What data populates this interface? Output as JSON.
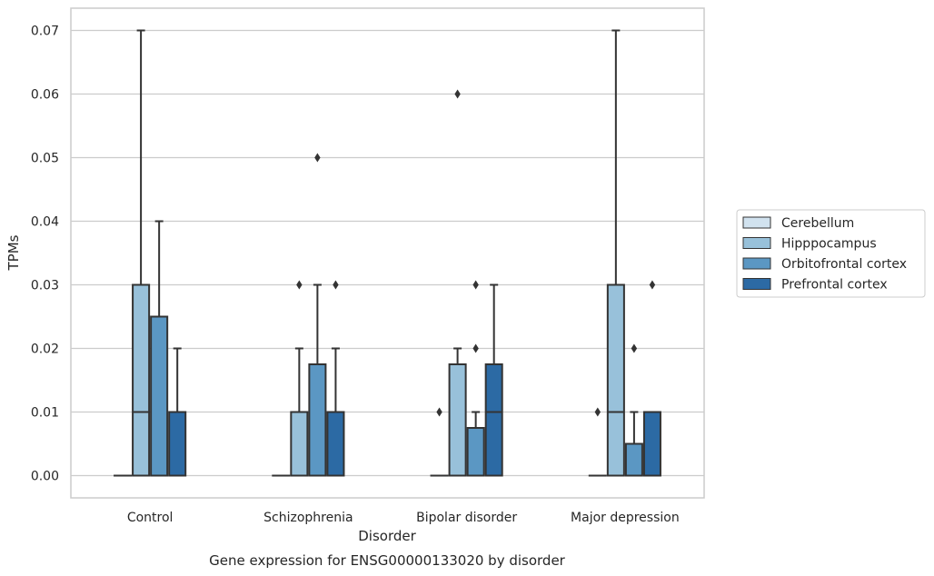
{
  "chart_data": {
    "type": "box",
    "title": "",
    "caption": "Gene expression for ENSG00000133020 by disorder",
    "xlabel": "Disorder",
    "ylabel": "TPMs",
    "ylim": [
      -0.0035,
      0.0735
    ],
    "yticks": [
      0.0,
      0.01,
      0.02,
      0.03,
      0.04,
      0.05,
      0.06,
      0.07
    ],
    "ytick_labels": [
      "0.00",
      "0.01",
      "0.02",
      "0.03",
      "0.04",
      "0.05",
      "0.06",
      "0.07"
    ],
    "grid": "horizontal",
    "legend_position": "right, outside plot",
    "categories": [
      "Control",
      "Schizophrenia",
      "Bipolar disorder",
      "Major depression"
    ],
    "series": [
      {
        "name": "Cerebellum",
        "color": "#d1e2ef",
        "boxes": [
          {
            "q1": 0.0,
            "median": 0.0,
            "q3": 0.0,
            "whisker_low": 0.0,
            "whisker_high": 0.0,
            "outliers": []
          },
          {
            "q1": 0.0,
            "median": 0.0,
            "q3": 0.0,
            "whisker_low": 0.0,
            "whisker_high": 0.0,
            "outliers": []
          },
          {
            "q1": 0.0,
            "median": 0.0,
            "q3": 0.0,
            "whisker_low": 0.0,
            "whisker_high": 0.0,
            "outliers": [
              0.01
            ]
          },
          {
            "q1": 0.0,
            "median": 0.0,
            "q3": 0.0,
            "whisker_low": 0.0,
            "whisker_high": 0.0,
            "outliers": [
              0.01
            ]
          }
        ]
      },
      {
        "name": "Hipppocampus",
        "color": "#98c1da",
        "boxes": [
          {
            "q1": 0.0,
            "median": 0.01,
            "q3": 0.03,
            "whisker_low": 0.0,
            "whisker_high": 0.07,
            "outliers": []
          },
          {
            "q1": 0.0,
            "median": 0.0,
            "q3": 0.01,
            "whisker_low": 0.0,
            "whisker_high": 0.02,
            "outliers": [
              0.03
            ]
          },
          {
            "q1": 0.0,
            "median": 0.0,
            "q3": 0.0175,
            "whisker_low": 0.0,
            "whisker_high": 0.02,
            "outliers": [
              0.06
            ]
          },
          {
            "q1": 0.0,
            "median": 0.01,
            "q3": 0.03,
            "whisker_low": 0.0,
            "whisker_high": 0.07,
            "outliers": []
          }
        ]
      },
      {
        "name": "Orbitofrontal cortex",
        "color": "#5b97c3",
        "boxes": [
          {
            "q1": 0.0,
            "median": 0.0,
            "q3": 0.025,
            "whisker_low": 0.0,
            "whisker_high": 0.04,
            "outliers": []
          },
          {
            "q1": 0.0,
            "median": 0.0,
            "q3": 0.0175,
            "whisker_low": 0.0,
            "whisker_high": 0.03,
            "outliers": [
              0.05
            ]
          },
          {
            "q1": 0.0,
            "median": 0.0,
            "q3": 0.0075,
            "whisker_low": 0.0,
            "whisker_high": 0.01,
            "outliers": [
              0.02,
              0.03
            ]
          },
          {
            "q1": 0.0,
            "median": 0.0,
            "q3": 0.005,
            "whisker_low": 0.0,
            "whisker_high": 0.01,
            "outliers": [
              0.02
            ]
          }
        ]
      },
      {
        "name": "Prefrontal cortex",
        "color": "#2c6aa4",
        "boxes": [
          {
            "q1": 0.0,
            "median": 0.0,
            "q3": 0.01,
            "whisker_low": 0.0,
            "whisker_high": 0.02,
            "outliers": []
          },
          {
            "q1": 0.0,
            "median": 0.0,
            "q3": 0.01,
            "whisker_low": 0.0,
            "whisker_high": 0.02,
            "outliers": [
              0.03
            ]
          },
          {
            "q1": 0.0,
            "median": 0.01,
            "q3": 0.0175,
            "whisker_low": 0.0,
            "whisker_high": 0.03,
            "outliers": []
          },
          {
            "q1": 0.0,
            "median": 0.0,
            "q3": 0.01,
            "whisker_low": 0.0,
            "whisker_high": 0.01,
            "outliers": [
              0.03
            ]
          }
        ]
      }
    ],
    "colors": {
      "frame": "#cccccc",
      "grid": "#cccccc",
      "line": "#333333"
    }
  }
}
